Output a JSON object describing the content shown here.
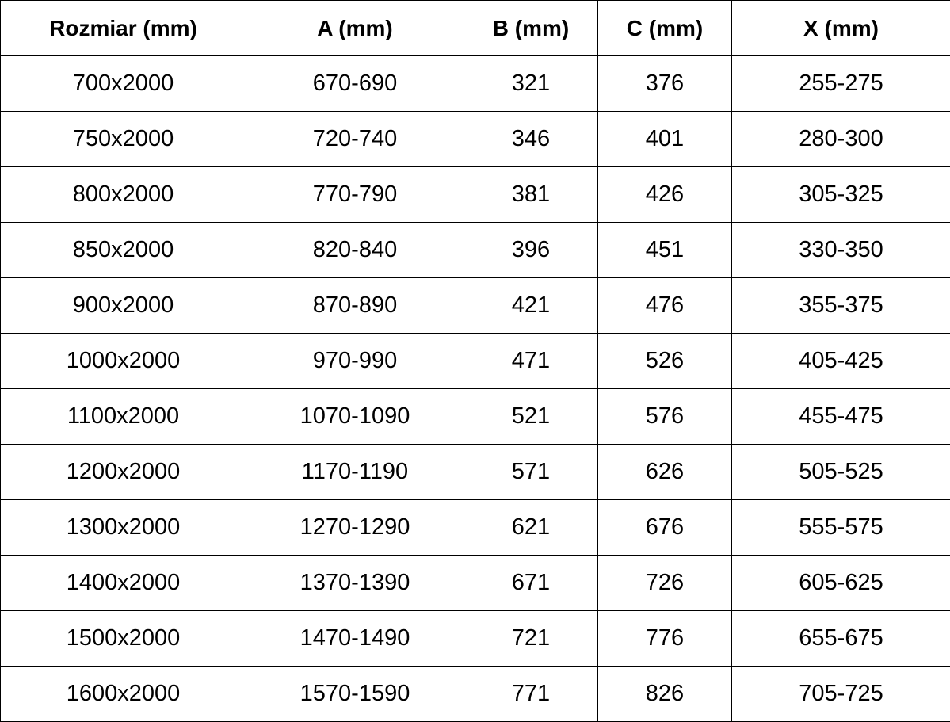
{
  "table": {
    "header": [
      "Rozmiar (mm)",
      "A (mm)",
      "B (mm)",
      "C (mm)",
      "X (mm)"
    ],
    "rows": [
      [
        "700x2000",
        "670-690",
        "321",
        "376",
        "255-275"
      ],
      [
        "750x2000",
        "720-740",
        "346",
        "401",
        "280-300"
      ],
      [
        "800x2000",
        "770-790",
        "381",
        "426",
        "305-325"
      ],
      [
        "850x2000",
        "820-840",
        "396",
        "451",
        "330-350"
      ],
      [
        "900x2000",
        "870-890",
        "421",
        "476",
        "355-375"
      ],
      [
        "1000x2000",
        "970-990",
        "471",
        "526",
        "405-425"
      ],
      [
        "1100x2000",
        "1070-1090",
        "521",
        "576",
        "455-475"
      ],
      [
        "1200x2000",
        "1170-1190",
        "571",
        "626",
        "505-525"
      ],
      [
        "1300x2000",
        "1270-1290",
        "621",
        "676",
        "555-575"
      ],
      [
        "1400x2000",
        "1370-1390",
        "671",
        "726",
        "605-625"
      ],
      [
        "1500x2000",
        "1470-1490",
        "721",
        "776",
        "655-675"
      ],
      [
        "1600x2000",
        "1570-1590",
        "771",
        "826",
        "705-725"
      ]
    ]
  }
}
